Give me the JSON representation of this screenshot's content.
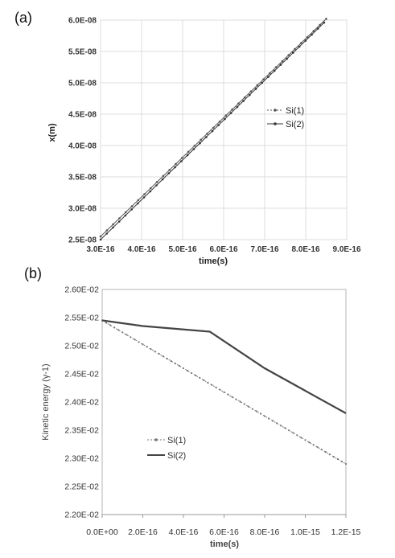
{
  "chart_data": [
    {
      "panel_label": "(a)",
      "type": "line",
      "xlabel": "time(s)",
      "ylabel": "x(m)",
      "xlim": [
        3e-16,
        9e-16
      ],
      "ylim": [
        2.5e-08,
        6e-08
      ],
      "x_ticks": [
        3e-16,
        4e-16,
        5e-16,
        6e-16,
        7e-16,
        8e-16,
        9e-16
      ],
      "x_tick_labels": [
        "3.0E-16",
        "4.0E-16",
        "5.0E-16",
        "6.0E-16",
        "7.0E-16",
        "8.0E-16",
        "9.0E-16"
      ],
      "y_ticks": [
        2.5e-08,
        3e-08,
        3.5e-08,
        4e-08,
        4.5e-08,
        5e-08,
        5.5e-08,
        6e-08
      ],
      "y_tick_labels": [
        "2.5E-08",
        "3.0E-08",
        "3.5E-08",
        "4.0E-08",
        "4.5E-08",
        "5.0E-08",
        "5.5E-08",
        "6.0E-08"
      ],
      "grid": true,
      "legend_position": "right",
      "series": [
        {
          "name": "Si(1)",
          "color": "#555555",
          "style": "dotted-markers",
          "x": [
            3e-16,
            8.5e-16
          ],
          "y": [
            2.55e-08,
            6.02e-08
          ]
        },
        {
          "name": "Si(2)",
          "color": "#333333",
          "style": "solid-markers",
          "x": [
            3e-16,
            8.45e-16
          ],
          "y": [
            2.5e-08,
            5.96e-08
          ]
        }
      ]
    },
    {
      "panel_label": "(b)",
      "type": "line",
      "xlabel": "time(s)",
      "ylabel": "Kinetic energy (γ-1)",
      "xlim": [
        0,
        1.2e-15
      ],
      "ylim": [
        0.022,
        0.026
      ],
      "x_ticks": [
        0,
        2e-16,
        4e-16,
        6e-16,
        8e-16,
        1e-15,
        1.2e-15
      ],
      "x_tick_labels": [
        "0.0E+00",
        "2.0E-16",
        "4.0E-16",
        "6.0E-16",
        "8.0E-16",
        "1.0E-15",
        "1.2E-15"
      ],
      "y_ticks": [
        0.022,
        0.0225,
        0.023,
        0.0235,
        0.024,
        0.0245,
        0.025,
        0.0255,
        0.026
      ],
      "y_tick_labels": [
        "2.20E-02",
        "2.25E-02",
        "2.30E-02",
        "2.35E-02",
        "2.40E-02",
        "2.45E-02",
        "2.50E-02",
        "2.55E-02",
        "2.60E-02"
      ],
      "grid": false,
      "legend_position": "lower-left",
      "series": [
        {
          "name": "Si(1)",
          "color": "#777777",
          "style": "dotted-markers",
          "x": [
            0,
            1.2e-15
          ],
          "y": [
            0.02545,
            0.0229
          ]
        },
        {
          "name": "Si(2)",
          "color": "#444444",
          "style": "solid-thick",
          "x": [
            0,
            2e-16,
            5.3e-16,
            8e-16,
            1e-15,
            1.2e-15
          ],
          "y": [
            0.02545,
            0.02535,
            0.02525,
            0.0246,
            0.0242,
            0.0238
          ]
        }
      ]
    }
  ]
}
